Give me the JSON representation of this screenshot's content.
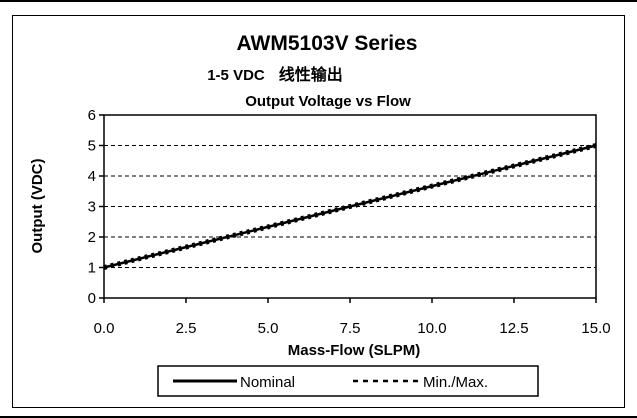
{
  "chart_data": {
    "type": "line",
    "title": "AWM5103V Series",
    "subtitle_bold": "1-5 VDC",
    "subtitle_cn": "线性输出",
    "plot_title": "Output Voltage vs Flow",
    "xlabel": "Mass-Flow (SLPM)",
    "ylabel": "Output (VDC)",
    "xlim": [
      0,
      15
    ],
    "ylim": [
      0,
      6
    ],
    "x_ticks": [
      "0.0",
      "2.5",
      "5.0",
      "7.5",
      "10.0",
      "12.5",
      "15.0"
    ],
    "y_ticks": [
      "0",
      "1",
      "2",
      "3",
      "4",
      "5",
      "6"
    ],
    "grid": "horizontal dashed",
    "legend_placement": "bottom",
    "series": [
      {
        "name": "Nominal",
        "style": "solid",
        "x": [
          0,
          2.5,
          5,
          7.5,
          10,
          12.5,
          15
        ],
        "y": [
          1.0,
          1.67,
          2.33,
          3.0,
          3.67,
          4.33,
          5.0
        ]
      },
      {
        "name": "Min./Max.",
        "style": "dashed",
        "x": [
          0,
          2.5,
          5,
          7.5,
          10,
          12.5,
          15
        ],
        "y": [
          1.0,
          1.67,
          2.33,
          3.0,
          3.67,
          4.33,
          5.0
        ]
      }
    ]
  },
  "colors": {
    "line": "#000000",
    "background": "#ffffff"
  }
}
